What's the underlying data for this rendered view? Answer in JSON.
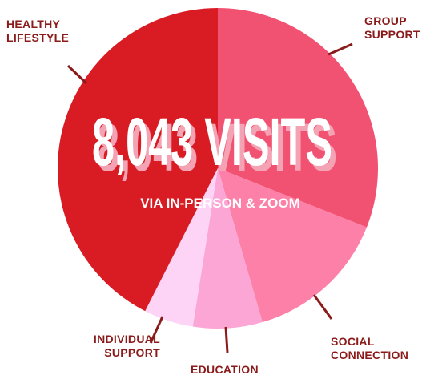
{
  "chart_data": {
    "type": "pie",
    "title": "8,043 VISITS",
    "subtitle": "VIA IN-PERSON & ZOOM",
    "categories": [
      "GROUP SUPPORT",
      "SOCIAL CONNECTION",
      "EDUCATION",
      "INDIVIDUAL SUPPORT",
      "HEALTHY LIFESTYLE"
    ],
    "values": [
      31,
      14.5,
      7,
      5,
      42.5
    ],
    "colors": [
      "#f25272",
      "#fc80a8",
      "#fca6d6",
      "#fdd3f6",
      "#d91c24"
    ]
  }
}
